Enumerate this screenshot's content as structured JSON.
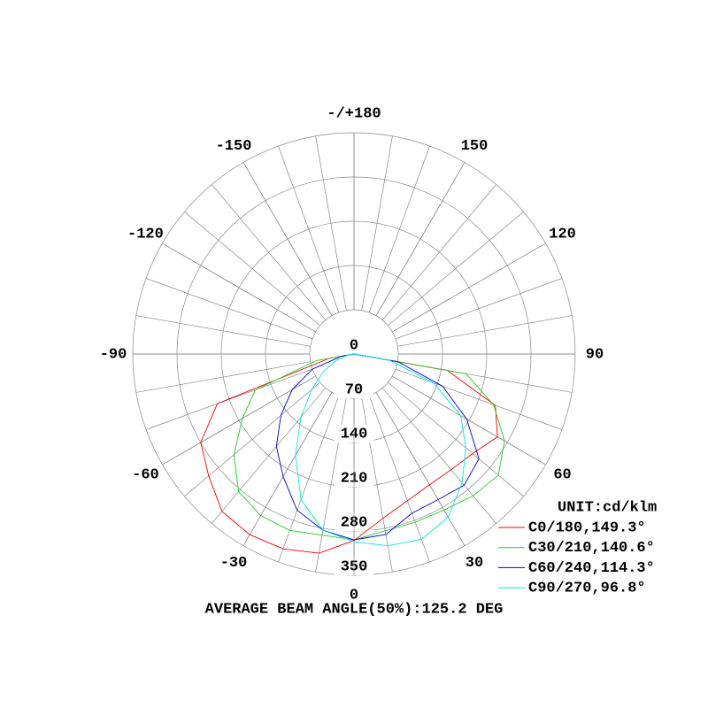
{
  "chart_data": {
    "type": "polar",
    "x": [
      -90,
      -80,
      -70,
      -60,
      -50,
      -40,
      -30,
      -20,
      -10,
      0,
      10,
      20,
      30,
      40,
      50,
      60,
      70,
      80,
      90
    ],
    "series": [
      {
        "name": "C0/180,149.3°",
        "color": "#ff0000",
        "values": [
          0,
          40,
          230,
          280,
          300,
          325,
          330,
          328,
          320,
          295,
          264,
          247,
          239,
          239,
          245,
          262,
          238,
          150,
          0
        ]
      },
      {
        "name": "C30/210,140.6°",
        "color": "#22cc22",
        "values": [
          0,
          60,
          166,
          204,
          248,
          284,
          295,
          297,
          291,
          294,
          284,
          283,
          285,
          293,
          298,
          275,
          235,
          180,
          0
        ]
      },
      {
        "name": "C60/240,114.3°",
        "color": "#0000cc",
        "values": [
          0,
          20,
          70,
          113,
          151,
          191,
          224,
          263,
          283,
          294,
          290,
          268,
          266,
          271,
          258,
          206,
          149,
          71,
          0
        ]
      },
      {
        "name": "C90/270,96.8°",
        "color": "#00e5e5",
        "values": [
          0,
          10,
          30,
          56,
          87,
          131,
          185,
          245,
          283,
          297,
          308,
          312,
          298,
          266,
          231,
          195,
          134,
          57,
          0
        ]
      }
    ],
    "xticks": [
      {
        "value": 180,
        "label": "-/+180"
      },
      150,
      120,
      90,
      60,
      30,
      0,
      -30,
      -60,
      -90,
      -120,
      -150
    ],
    "rlim": [
      0,
      350
    ],
    "rticks": [
      0,
      70,
      140,
      210,
      280,
      350
    ],
    "unit": "UNIT:cd/klm",
    "footer": "AVERAGE BEAM ANGLE(50%):125.2 DEG"
  }
}
